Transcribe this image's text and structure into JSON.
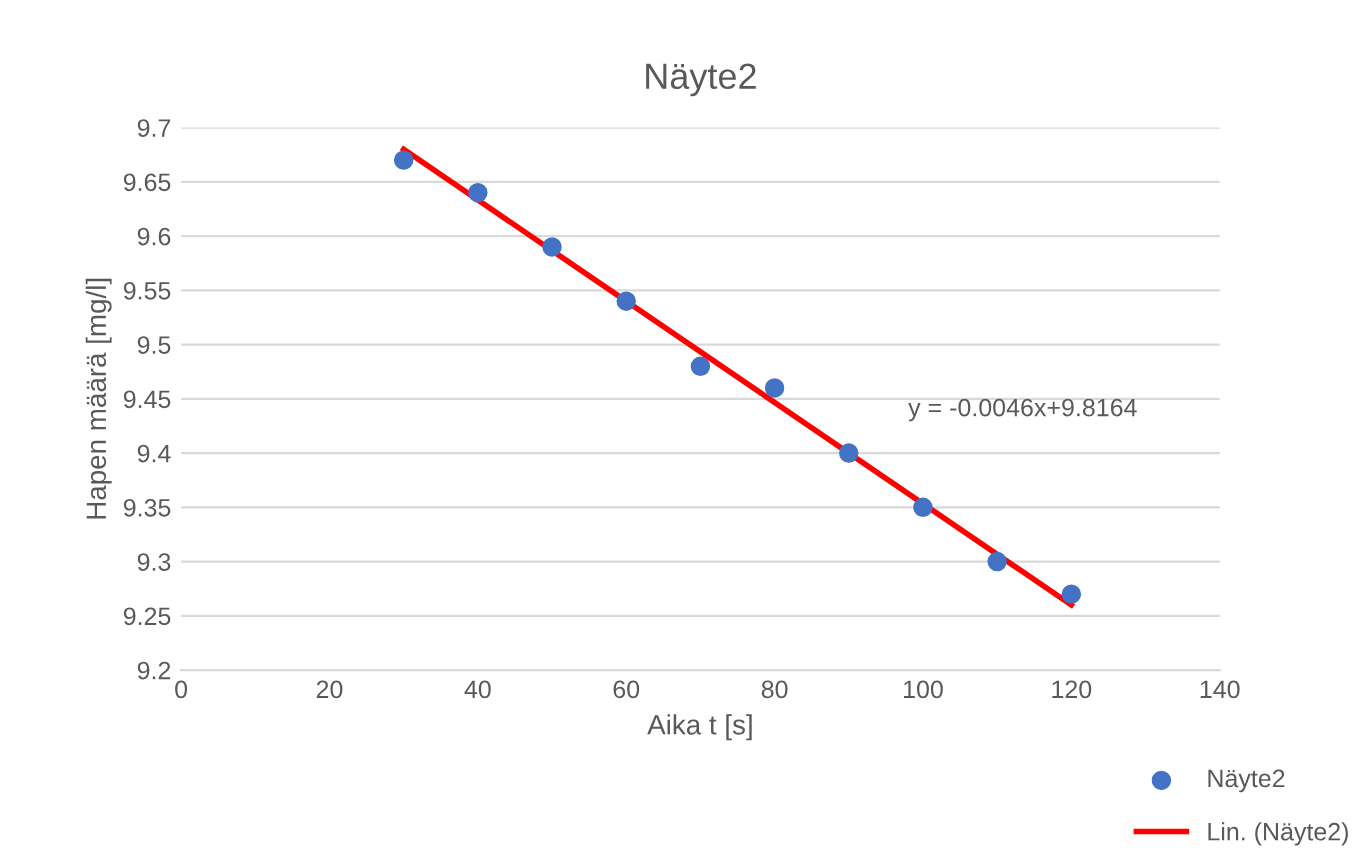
{
  "chart_data": {
    "type": "scatter",
    "title": "Näyte2",
    "xlabel": "Aika t [s]",
    "ylabel": "Hapen määrä [mg/l]",
    "xlim": [
      0,
      140
    ],
    "xticks": [
      0,
      20,
      40,
      60,
      80,
      100,
      120,
      140
    ],
    "ylim": [
      9.2,
      9.7
    ],
    "yticks": [
      9.2,
      9.25,
      9.3,
      9.35,
      9.4,
      9.45,
      9.5,
      9.55,
      9.6,
      9.65,
      9.7
    ],
    "grid": "y",
    "legend": "bottom right",
    "annotations": [
      "y = -0.0046x+9.8164"
    ],
    "series": [
      {
        "name": "Näyte2",
        "marker": "circle",
        "color": "#4472c4",
        "x": [
          30,
          40,
          50,
          60,
          70,
          80,
          90,
          100,
          110,
          120
        ],
        "values": [
          9.67,
          9.64,
          9.59,
          9.54,
          9.48,
          9.46,
          9.4,
          9.35,
          9.3,
          9.27
        ]
      },
      {
        "name": "Lin. (Näyte2)",
        "type": "line",
        "marker": "none",
        "line_style": "solid",
        "color": "#ff0000",
        "x": [
          30,
          120
        ],
        "values": [
          9.68,
          9.26
        ]
      }
    ]
  }
}
